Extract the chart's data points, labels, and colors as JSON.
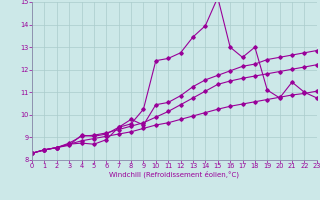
{
  "xlabel": "Windchill (Refroidissement éolien,°C)",
  "xlim": [
    0,
    23
  ],
  "ylim": [
    8,
    15
  ],
  "xticks": [
    0,
    1,
    2,
    3,
    4,
    5,
    6,
    7,
    8,
    9,
    10,
    11,
    12,
    13,
    14,
    15,
    16,
    17,
    18,
    19,
    20,
    21,
    22,
    23
  ],
  "yticks": [
    8,
    9,
    10,
    11,
    12,
    13,
    14,
    15
  ],
  "bg_color": "#cce8e8",
  "grid_color": "#aacccc",
  "lc": "#990099",
  "line1_x": [
    0,
    1,
    2,
    3,
    4,
    5,
    6,
    7,
    8,
    9,
    10,
    11,
    12,
    13,
    14,
    15,
    16,
    17,
    18,
    19,
    20,
    21,
    22,
    23
  ],
  "line1_y": [
    8.3,
    8.45,
    8.55,
    8.7,
    8.85,
    8.95,
    9.05,
    9.15,
    9.25,
    9.4,
    9.55,
    9.65,
    9.8,
    9.95,
    10.1,
    10.25,
    10.38,
    10.48,
    10.58,
    10.68,
    10.78,
    10.88,
    10.95,
    11.05
  ],
  "line2_x": [
    0,
    1,
    2,
    3,
    4,
    5,
    6,
    7,
    8,
    9,
    10,
    11,
    12,
    13,
    14,
    15,
    16,
    17,
    18,
    19,
    20,
    21,
    22,
    23
  ],
  "line2_y": [
    8.3,
    8.45,
    8.55,
    8.75,
    9.05,
    9.1,
    9.2,
    9.35,
    9.5,
    9.65,
    9.9,
    10.15,
    10.45,
    10.75,
    11.05,
    11.35,
    11.5,
    11.62,
    11.72,
    11.82,
    11.92,
    12.02,
    12.12,
    12.22
  ],
  "line3_x": [
    0,
    1,
    2,
    3,
    4,
    5,
    6,
    7,
    8,
    9,
    10,
    11,
    12,
    13,
    14,
    15,
    16,
    17,
    18,
    19,
    20,
    21,
    22,
    23
  ],
  "line3_y": [
    8.3,
    8.45,
    8.55,
    8.7,
    8.75,
    8.7,
    8.9,
    9.45,
    9.6,
    10.25,
    12.4,
    12.5,
    12.75,
    13.45,
    13.95,
    15.2,
    13.0,
    12.55,
    13.0,
    11.1,
    10.75,
    11.45,
    11.0,
    10.75
  ],
  "line4_x": [
    0,
    1,
    2,
    3,
    4,
    5,
    6,
    7,
    8,
    9,
    10,
    11,
    12,
    13,
    14,
    15,
    16,
    17,
    18,
    19,
    20,
    21,
    22,
    23
  ],
  "line4_y": [
    8.3,
    8.45,
    8.55,
    8.65,
    9.1,
    9.05,
    9.15,
    9.45,
    9.8,
    9.55,
    10.45,
    10.55,
    10.85,
    11.25,
    11.55,
    11.75,
    11.95,
    12.15,
    12.25,
    12.45,
    12.55,
    12.65,
    12.75,
    12.85
  ]
}
